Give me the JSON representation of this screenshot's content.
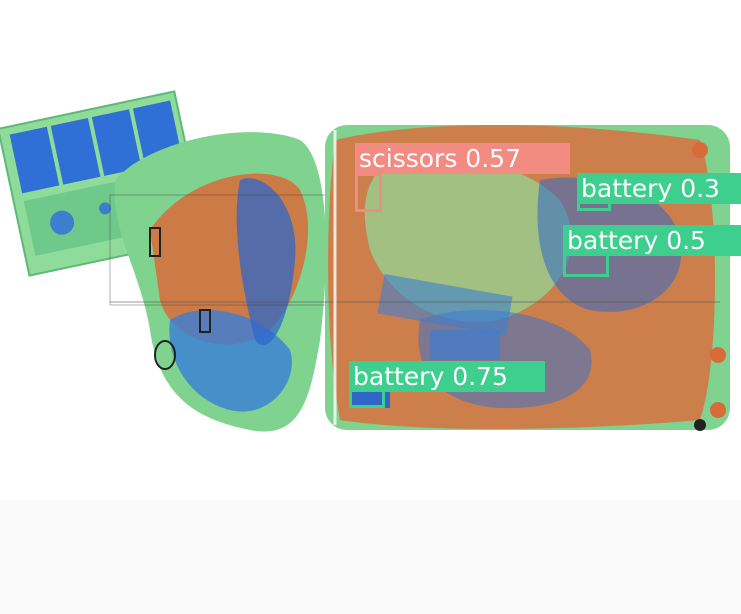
{
  "colors": {
    "background": "#ffffff",
    "scissors": "#f28b82",
    "battery": "#3ecf8e"
  },
  "detections": [
    {
      "label": "scissors 0.57",
      "class": "scissors",
      "confidence": 0.57
    },
    {
      "label": "battery 0.3",
      "class": "battery",
      "confidence": 0.3
    },
    {
      "label": "battery 0.5",
      "class": "battery",
      "confidence": 0.5
    },
    {
      "label": "battery 0.75",
      "class": "battery",
      "confidence": 0.75
    }
  ]
}
